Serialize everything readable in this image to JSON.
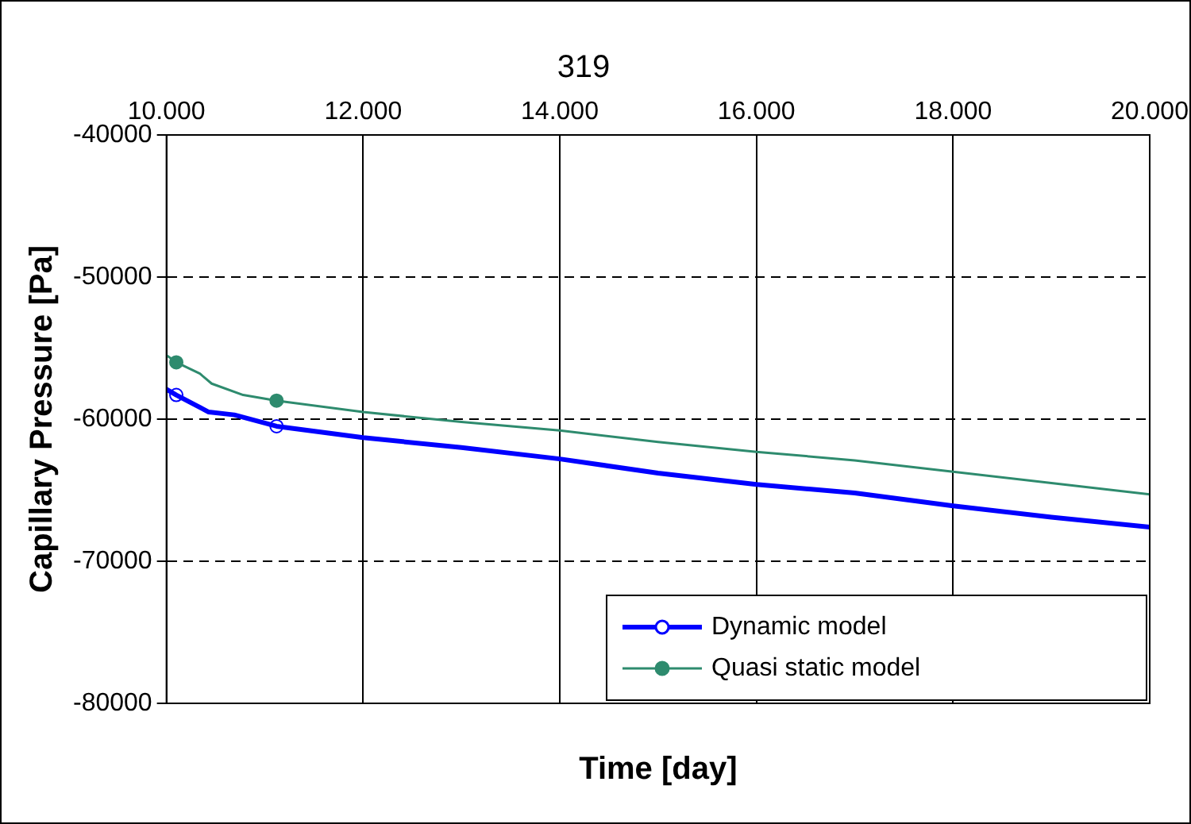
{
  "chart_data": {
    "type": "line",
    "title": "319",
    "xlabel": "Time [day]",
    "ylabel": "Capillary Pressure [Pa]",
    "xlim": [
      10000,
      20000
    ],
    "xticks": [
      {
        "value": 10000,
        "label": "10.000"
      },
      {
        "value": 12000,
        "label": "12.000"
      },
      {
        "value": 14000,
        "label": "14.000"
      },
      {
        "value": 16000,
        "label": "16.000"
      },
      {
        "value": 18000,
        "label": "18.000"
      },
      {
        "value": 20000,
        "label": "20.000"
      }
    ],
    "ylim": [
      -80000,
      -40000
    ],
    "yticks": [
      -80000,
      -70000,
      -60000,
      -50000,
      -40000
    ],
    "grid": true,
    "legend": "bottom right",
    "marker": "none",
    "line_style": "solid",
    "series": [
      {
        "name": "Dynamic model",
        "color": "#0000ff",
        "x": [
          10000,
          10100,
          10430,
          10690,
          11120,
          12000,
          13000,
          14000,
          15000,
          16000,
          17000,
          18000,
          19000,
          20000
        ],
        "values": [
          -57900,
          -58300,
          -59500,
          -59700,
          -60500,
          -61300,
          -62000,
          -62800,
          -63800,
          -64600,
          -65200,
          -66100,
          -66900,
          -67600
        ]
      },
      {
        "name": "Quasi static model",
        "color": "#2e8b6e",
        "x": [
          10000,
          10100,
          10340,
          10460,
          10780,
          11120,
          12000,
          13000,
          14000,
          15000,
          16000,
          17000,
          18000,
          19000,
          20000
        ],
        "values": [
          -55500,
          -56000,
          -56800,
          -57500,
          -58300,
          -58700,
          -59500,
          -60200,
          -60800,
          -61600,
          -62300,
          -62900,
          -63700,
          -64500,
          -65300
        ]
      },
      {
        "type": "scatter",
        "color": "#0000ff",
        "marker": "circle",
        "x": [
          10100,
          11120
        ],
        "values": [
          -58300,
          -60500
        ]
      },
      {
        "type": "scatter",
        "color": "#2e8b6e",
        "marker": "circle",
        "x": [
          10100,
          11120
        ],
        "values": [
          -56000,
          -58700
        ]
      }
    ]
  }
}
